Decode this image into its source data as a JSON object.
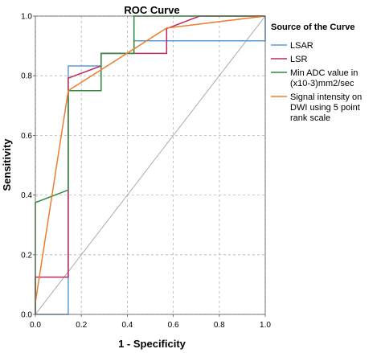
{
  "chart_data": {
    "type": "line",
    "title": "ROC Curve",
    "xlabel": "1 - Specificity",
    "ylabel": "Sensitivity",
    "xlim": [
      0,
      1
    ],
    "ylim": [
      0,
      1
    ],
    "x_ticks": [
      0.0,
      0.2,
      0.4,
      0.6,
      0.8,
      1.0
    ],
    "y_ticks": [
      0.0,
      0.2,
      0.4,
      0.6,
      0.8,
      1.0
    ],
    "x_tick_labels": [
      "0.0",
      "0.2",
      "0.4",
      "0.6",
      "0.8",
      "1.0"
    ],
    "y_tick_labels": [
      "0.0",
      "0.2",
      "0.4",
      "0.6",
      "0.8",
      "1.0"
    ],
    "grid": true,
    "diagonal_reference": true,
    "legend": {
      "title": "Source of the Curve",
      "placement": "right"
    },
    "series": [
      {
        "name": "LSAR",
        "color": "#5b9bd5",
        "points": [
          [
            0,
            0
          ],
          [
            0.143,
            0
          ],
          [
            0.143,
            0.833
          ],
          [
            0.286,
            0.833
          ],
          [
            0.286,
            0.875
          ],
          [
            0.429,
            0.875
          ],
          [
            0.429,
            0.917
          ],
          [
            1.0,
            0.917
          ],
          [
            1.0,
            1.0
          ]
        ]
      },
      {
        "name": "LSR",
        "color": "#c0265b",
        "points": [
          [
            0,
            0
          ],
          [
            0,
            0.125
          ],
          [
            0.143,
            0.125
          ],
          [
            0.143,
            0.792
          ],
          [
            0.286,
            0.833
          ],
          [
            0.286,
            0.875
          ],
          [
            0.571,
            0.875
          ],
          [
            0.571,
            0.958
          ],
          [
            0.714,
            1.0
          ],
          [
            1.0,
            1.0
          ]
        ]
      },
      {
        "name": "Min ADC value in (x10-3)mm2/sec",
        "color": "#2e8b3e",
        "points": [
          [
            0,
            0
          ],
          [
            0,
            0.375
          ],
          [
            0.143,
            0.417
          ],
          [
            0.143,
            0.75
          ],
          [
            0.286,
            0.75
          ],
          [
            0.286,
            0.875
          ],
          [
            0.429,
            0.875
          ],
          [
            0.429,
            1.0
          ],
          [
            1.0,
            1.0
          ]
        ]
      },
      {
        "name": "Signal intensity on DWI using 5 point rank scale",
        "color": "#ed7d31",
        "points": [
          [
            0,
            0.04
          ],
          [
            0.143,
            0.75
          ],
          [
            0.429,
            0.89
          ],
          [
            0.571,
            0.96
          ],
          [
            1.0,
            1.0
          ]
        ]
      }
    ]
  }
}
